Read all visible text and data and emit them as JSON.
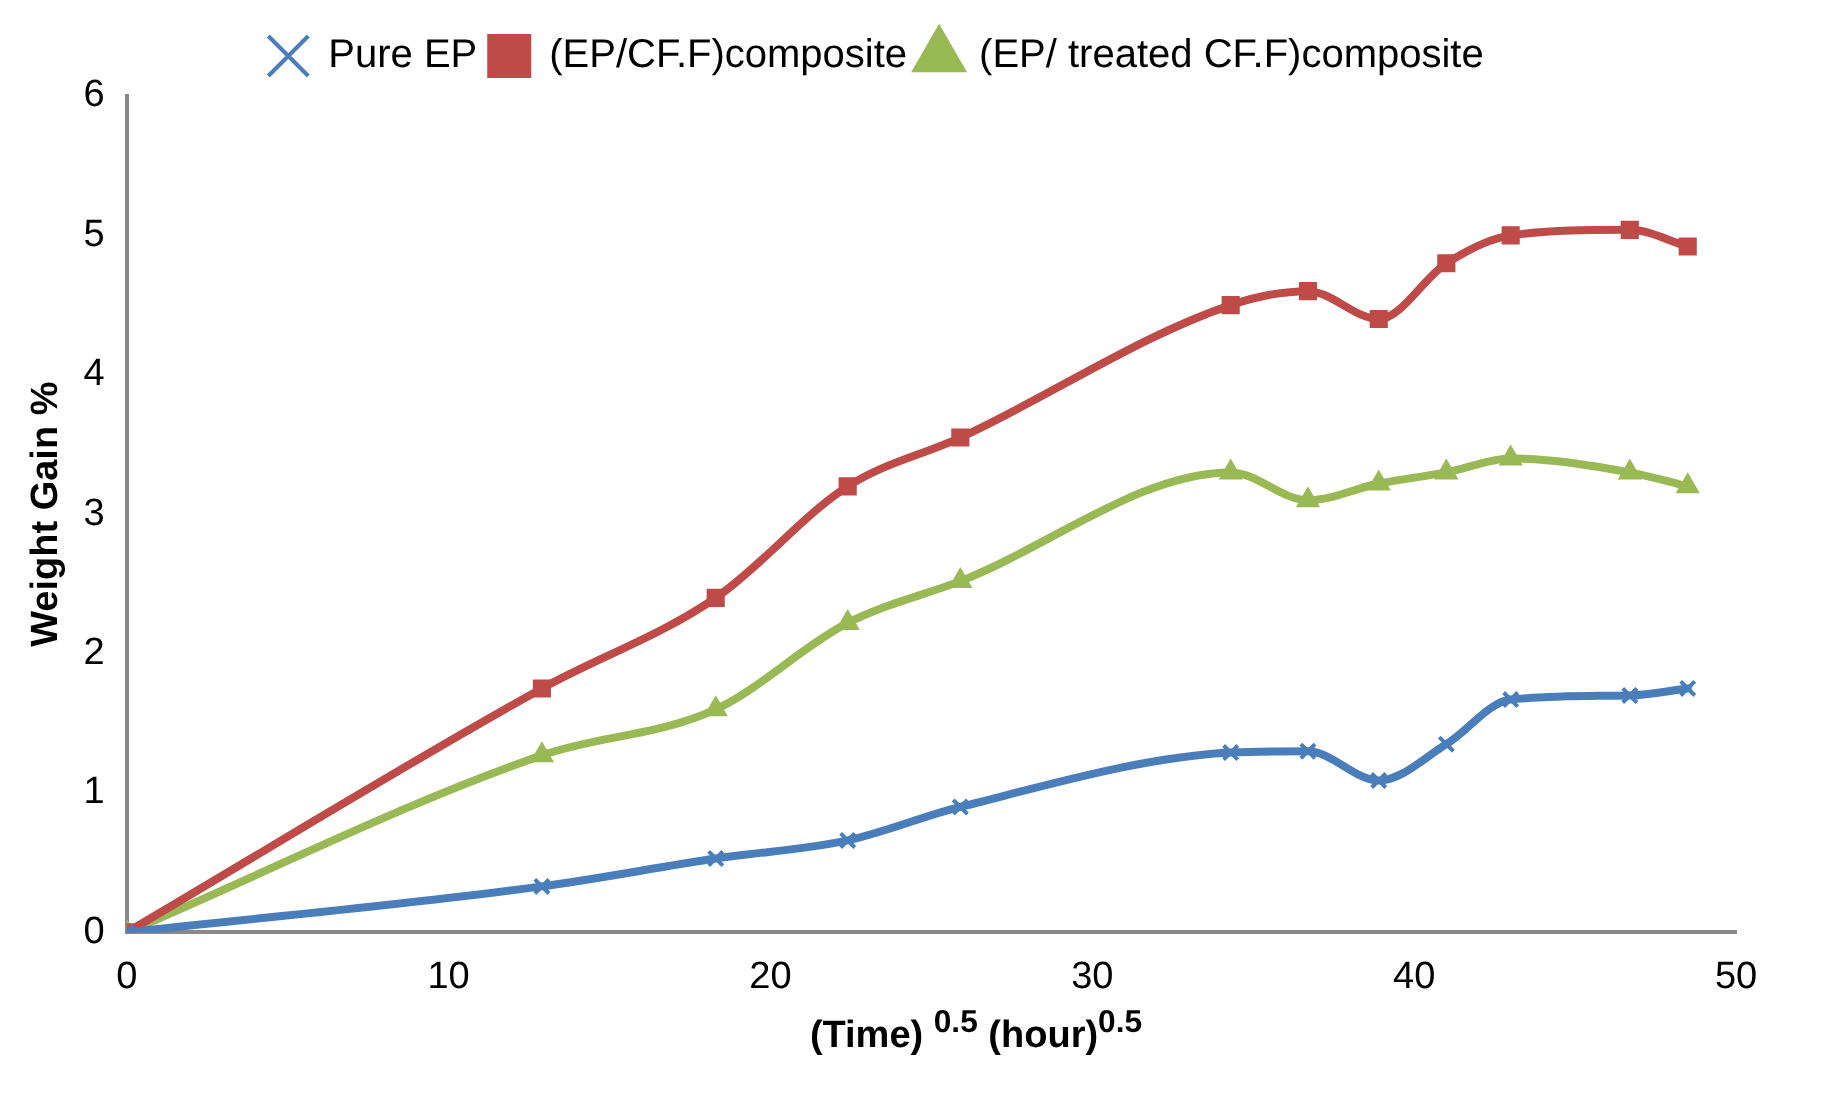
{
  "chart_data": {
    "type": "line",
    "xlabel": "(Time) $^{0.5}$ (hour)$^{0.5}$",
    "ylabel": "Weight Gain %",
    "x": [
      0,
      12.9,
      18.3,
      22.4,
      25.9,
      34.3,
      36.7,
      38.9,
      41.0,
      43.0,
      46.7,
      48.5
    ],
    "series": [
      {
        "name": "Pure EP",
        "color": "#4a7ebb",
        "marker": "cross",
        "values": [
          0,
          0.33,
          0.53,
          0.66,
          0.9,
          1.29,
          1.3,
          1.09,
          1.35,
          1.67,
          1.7,
          1.75
        ]
      },
      {
        "name": "(EP/CF.F)composite",
        "color": "#be4b48",
        "marker": "square",
        "values": [
          0,
          1.75,
          2.4,
          3.2,
          3.55,
          4.5,
          4.6,
          4.4,
          4.8,
          5.0,
          5.04,
          4.92
        ]
      },
      {
        "name": "(EP/ treated CF.F)composite",
        "color": "#98b954",
        "marker": "triangle",
        "values": [
          0,
          1.27,
          1.6,
          2.22,
          2.52,
          3.3,
          3.1,
          3.22,
          3.3,
          3.4,
          3.3,
          3.2
        ]
      }
    ],
    "xlim": [
      0,
      50
    ],
    "xticks": [
      0,
      10,
      20,
      30,
      40,
      50
    ],
    "ylim": [
      0,
      6
    ],
    "yticks": [
      0,
      1,
      2,
      3,
      4,
      5,
      6
    ],
    "grid": false,
    "legend": "top",
    "line_style": "solid"
  }
}
